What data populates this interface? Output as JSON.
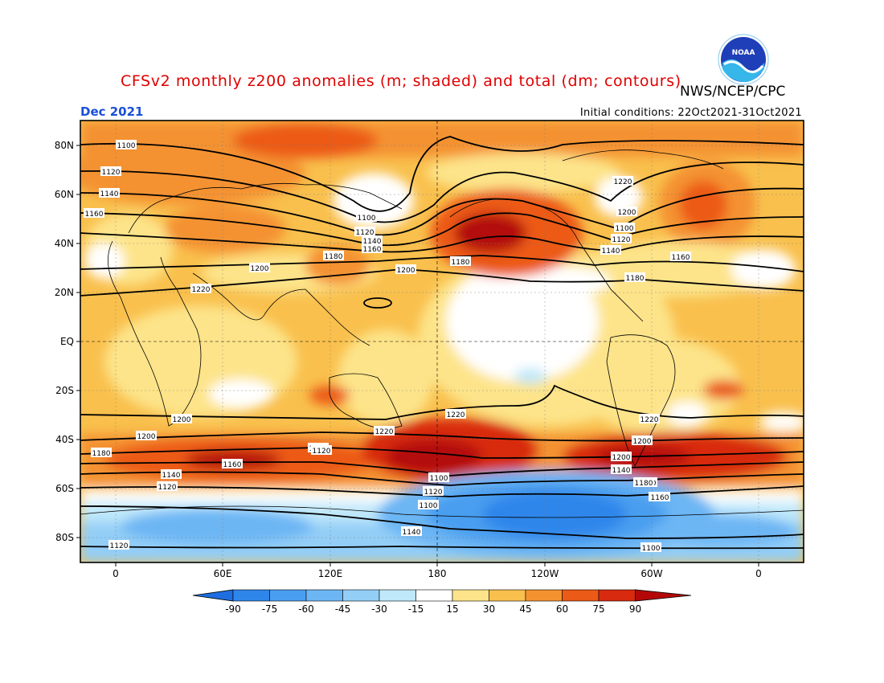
{
  "title": "CFSv2 monthly z200 anomalies (m; shaded) and total (dm; contours)",
  "agency": "NWS/NCEP/CPC",
  "period": "Dec 2021",
  "initial_conditions": "Initial conditions: 22Oct2021-31Oct2021",
  "logo_text": "NOAA",
  "axes": {
    "lat_labels": [
      "80N",
      "60N",
      "40N",
      "20N",
      "EQ",
      "20S",
      "40S",
      "60S",
      "80S"
    ],
    "lon_labels": [
      "0",
      "60E",
      "120E",
      "180",
      "120W",
      "60W",
      "0"
    ]
  },
  "colorbar": {
    "levels": [
      "-90",
      "-75",
      "-60",
      "-45",
      "-30",
      "-15",
      "15",
      "30",
      "45",
      "60",
      "75",
      "90"
    ],
    "colors": [
      "#1e6ee0",
      "#2f86ea",
      "#4a9ef0",
      "#6cb6f4",
      "#93cef7",
      "#bfe8fa",
      "#ffffff",
      "#fde48a",
      "#f9c04d",
      "#f49230",
      "#ec5a17",
      "#d82a0e",
      "#b40808"
    ]
  },
  "contour_labels": [
    {
      "v": "1100"
    },
    {
      "v": "1120"
    },
    {
      "v": "1140"
    },
    {
      "v": "1160"
    },
    {
      "v": "1180"
    },
    {
      "v": "1200"
    },
    {
      "v": "1220"
    },
    {
      "v": "1100"
    },
    {
      "v": "1120"
    },
    {
      "v": "1140"
    },
    {
      "v": "1160"
    },
    {
      "v": "1180"
    },
    {
      "v": "1200"
    },
    {
      "v": "1220"
    },
    {
      "v": "1200"
    },
    {
      "v": "1100"
    },
    {
      "v": "1120"
    },
    {
      "v": "1140"
    },
    {
      "v": "1160"
    },
    {
      "v": "1180"
    },
    {
      "v": "1200"
    },
    {
      "v": "1220"
    },
    {
      "v": "1220"
    },
    {
      "v": "1200"
    },
    {
      "v": "1180"
    },
    {
      "v": "1160"
    },
    {
      "v": "1140"
    },
    {
      "v": "1120"
    },
    {
      "v": "1220"
    },
    {
      "v": "1200"
    },
    {
      "v": "1180"
    },
    {
      "v": "1160"
    },
    {
      "v": "1140"
    },
    {
      "v": "1120"
    },
    {
      "v": "1100"
    },
    {
      "v": "1220"
    },
    {
      "v": "1200"
    },
    {
      "v": "1180"
    },
    {
      "v": "1160"
    },
    {
      "v": "1140"
    },
    {
      "v": "1120"
    },
    {
      "v": "1100"
    },
    {
      "v": "1200"
    },
    {
      "v": "1180"
    },
    {
      "v": "1160"
    },
    {
      "v": "1140"
    },
    {
      "v": "1120"
    },
    {
      "v": "1100"
    }
  ]
}
